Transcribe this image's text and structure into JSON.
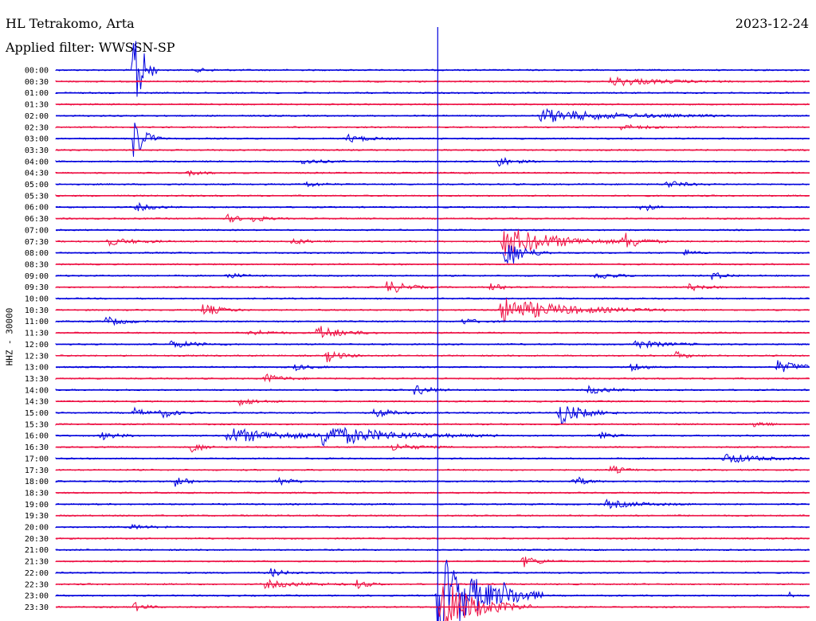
{
  "header": {
    "station": "HL Tetrakomo, Arta",
    "date": "2023-12-24",
    "filter": "Applied filter: WWSSN-SP"
  },
  "colors": {
    "trace_a": "#0000dd",
    "trace_b": "#ee1144",
    "marker": "#0000dd"
  },
  "chart_data": {
    "type": "line",
    "title": "HL Tetrakomo, Arta",
    "ylabel": "HHZ - 30000",
    "xlabel": "",
    "grid": false,
    "rows": [
      "00:00",
      "00:30",
      "01:00",
      "01:30",
      "02:00",
      "02:30",
      "03:00",
      "03:30",
      "04:00",
      "04:30",
      "05:00",
      "05:30",
      "06:00",
      "06:30",
      "07:00",
      "07:30",
      "08:00",
      "08:30",
      "09:00",
      "09:30",
      "10:00",
      "10:30",
      "11:00",
      "11:30",
      "12:00",
      "12:30",
      "13:00",
      "13:30",
      "14:00",
      "14:30",
      "15:00",
      "15:30",
      "16:00",
      "16:30",
      "17:00",
      "17:30",
      "18:00",
      "18:30",
      "19:00",
      "19:30",
      "20:00",
      "20:30",
      "21:00",
      "21:30",
      "22:00",
      "22:30",
      "23:00",
      "23:30"
    ],
    "row_minutes": 30,
    "current_time_minute": 15.2,
    "events": [
      {
        "row": 0,
        "minute": 5.6,
        "amp": 2,
        "dur": 0.6
      },
      {
        "row": 0,
        "minute": 3.1,
        "amp": 85,
        "dur": 0.3
      },
      {
        "row": 1,
        "minute": 22.1,
        "amp": 6,
        "dur": 1.6
      },
      {
        "row": 4,
        "minute": 19.3,
        "amp": 9,
        "dur": 2.5
      },
      {
        "row": 5,
        "minute": 22.5,
        "amp": 3,
        "dur": 1.0
      },
      {
        "row": 6,
        "minute": 3.1,
        "amp": 30,
        "dur": 0.4
      },
      {
        "row": 6,
        "minute": 11.6,
        "amp": 5,
        "dur": 0.7
      },
      {
        "row": 8,
        "minute": 9.8,
        "amp": 4,
        "dur": 0.6
      },
      {
        "row": 8,
        "minute": 17.6,
        "amp": 7,
        "dur": 0.5
      },
      {
        "row": 9,
        "minute": 5.3,
        "amp": 4,
        "dur": 0.5
      },
      {
        "row": 10,
        "minute": 9.9,
        "amp": 4,
        "dur": 0.5
      },
      {
        "row": 10,
        "minute": 24.3,
        "amp": 5,
        "dur": 0.6
      },
      {
        "row": 12,
        "minute": 3.2,
        "amp": 5,
        "dur": 0.6
      },
      {
        "row": 12,
        "minute": 23.3,
        "amp": 9,
        "dur": 0.3
      },
      {
        "row": 13,
        "minute": 6.8,
        "amp": 5,
        "dur": 0.5
      },
      {
        "row": 13,
        "minute": 7.8,
        "amp": 4,
        "dur": 0.5
      },
      {
        "row": 15,
        "minute": 2.0,
        "amp": 5,
        "dur": 1.0
      },
      {
        "row": 15,
        "minute": 9.4,
        "amp": 4,
        "dur": 0.6
      },
      {
        "row": 15,
        "minute": 17.8,
        "amp": 20,
        "dur": 1.8
      },
      {
        "row": 15,
        "minute": 22.6,
        "amp": 11,
        "dur": 0.6
      },
      {
        "row": 16,
        "minute": 17.9,
        "amp": 22,
        "dur": 0.6
      },
      {
        "row": 16,
        "minute": 25.0,
        "amp": 4,
        "dur": 0.4
      },
      {
        "row": 18,
        "minute": 6.8,
        "amp": 4,
        "dur": 0.5
      },
      {
        "row": 18,
        "minute": 21.5,
        "amp": 5,
        "dur": 0.6
      },
      {
        "row": 18,
        "minute": 26.1,
        "amp": 5,
        "dur": 0.5
      },
      {
        "row": 19,
        "minute": 13.2,
        "amp": 10,
        "dur": 0.6
      },
      {
        "row": 19,
        "minute": 17.3,
        "amp": 5,
        "dur": 0.5
      },
      {
        "row": 19,
        "minute": 25.2,
        "amp": 5,
        "dur": 0.5
      },
      {
        "row": 21,
        "minute": 5.8,
        "amp": 9,
        "dur": 0.6
      },
      {
        "row": 21,
        "minute": 17.7,
        "amp": 16,
        "dur": 2.2
      },
      {
        "row": 22,
        "minute": 2.0,
        "amp": 6,
        "dur": 0.6
      },
      {
        "row": 22,
        "minute": 16.2,
        "amp": 4,
        "dur": 0.5
      },
      {
        "row": 23,
        "minute": 7.7,
        "amp": 5,
        "dur": 0.6
      },
      {
        "row": 23,
        "minute": 10.4,
        "amp": 10,
        "dur": 0.8
      },
      {
        "row": 24,
        "minute": 4.6,
        "amp": 5,
        "dur": 0.8
      },
      {
        "row": 24,
        "minute": 22.9,
        "amp": 6,
        "dur": 1.0
      },
      {
        "row": 25,
        "minute": 10.8,
        "amp": 8,
        "dur": 0.5
      },
      {
        "row": 25,
        "minute": 24.7,
        "amp": 5,
        "dur": 0.4
      },
      {
        "row": 26,
        "minute": 9.5,
        "amp": 4,
        "dur": 0.5
      },
      {
        "row": 26,
        "minute": 22.9,
        "amp": 7,
        "dur": 0.4
      },
      {
        "row": 26,
        "minute": 28.7,
        "amp": 8,
        "dur": 0.9
      },
      {
        "row": 27,
        "minute": 8.3,
        "amp": 6,
        "dur": 0.6
      },
      {
        "row": 28,
        "minute": 14.3,
        "amp": 8,
        "dur": 0.5
      },
      {
        "row": 28,
        "minute": 21.2,
        "amp": 5,
        "dur": 0.8
      },
      {
        "row": 29,
        "minute": 7.3,
        "amp": 5,
        "dur": 0.6
      },
      {
        "row": 30,
        "minute": 3.1,
        "amp": 6,
        "dur": 0.5
      },
      {
        "row": 30,
        "minute": 4.2,
        "amp": 6,
        "dur": 0.5
      },
      {
        "row": 30,
        "minute": 12.7,
        "amp": 8,
        "dur": 0.5
      },
      {
        "row": 30,
        "minute": 20.0,
        "amp": 16,
        "dur": 0.8
      },
      {
        "row": 31,
        "minute": 27.8,
        "amp": 5,
        "dur": 0.4
      },
      {
        "row": 32,
        "minute": 1.8,
        "amp": 5,
        "dur": 0.6
      },
      {
        "row": 32,
        "minute": 6.8,
        "amp": 10,
        "dur": 2.2
      },
      {
        "row": 32,
        "minute": 10.5,
        "amp": 13,
        "dur": 2.4
      },
      {
        "row": 32,
        "minute": 21.7,
        "amp": 4,
        "dur": 0.4
      },
      {
        "row": 33,
        "minute": 5.4,
        "amp": 8,
        "dur": 0.4
      },
      {
        "row": 33,
        "minute": 13.4,
        "amp": 5,
        "dur": 0.8
      },
      {
        "row": 34,
        "minute": 26.6,
        "amp": 7,
        "dur": 1.1
      },
      {
        "row": 35,
        "minute": 22.1,
        "amp": 6,
        "dur": 0.4
      },
      {
        "row": 36,
        "minute": 4.7,
        "amp": 7,
        "dur": 0.5
      },
      {
        "row": 36,
        "minute": 8.8,
        "amp": 6,
        "dur": 0.5
      },
      {
        "row": 36,
        "minute": 20.6,
        "amp": 8,
        "dur": 0.4
      },
      {
        "row": 38,
        "minute": 21.9,
        "amp": 5,
        "dur": 1.2
      },
      {
        "row": 40,
        "minute": 3.0,
        "amp": 3,
        "dur": 0.6
      },
      {
        "row": 43,
        "minute": 18.6,
        "amp": 7,
        "dur": 0.6
      },
      {
        "row": 44,
        "minute": 8.5,
        "amp": 6,
        "dur": 0.5
      },
      {
        "row": 45,
        "minute": 8.3,
        "amp": 5,
        "dur": 1.3
      },
      {
        "row": 45,
        "minute": 12.0,
        "amp": 6,
        "dur": 0.4
      },
      {
        "row": 46,
        "minute": 17.8,
        "amp": 9,
        "dur": 0.5
      },
      {
        "row": 46,
        "minute": 29.2,
        "amp": 6,
        "dur": 0.2
      },
      {
        "row": 47,
        "minute": 3.1,
        "amp": 6,
        "dur": 0.4
      },
      {
        "row": 47,
        "minute": 15.3,
        "amp": 40,
        "dur": 1.2
      },
      {
        "row": 46,
        "minute": 15.2,
        "amp": 60,
        "dur": 1.4
      }
    ]
  }
}
